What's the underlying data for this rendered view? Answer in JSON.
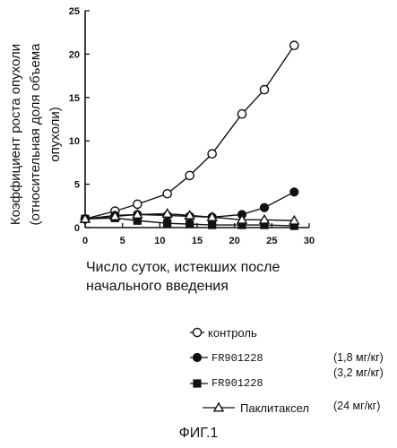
{
  "figure": {
    "caption": "ФИГ.1"
  },
  "chart_data": {
    "type": "line",
    "ylabel_lines": [
      "Коэффициент роста опухоли",
      "(относительная доля объема",
      "опухоли)"
    ],
    "xlabel_lines": [
      "Число суток, истекших после",
      "начального введения"
    ],
    "xlim": [
      0,
      30
    ],
    "ylim": [
      0,
      25
    ],
    "x_ticks": [
      0,
      5,
      10,
      15,
      20,
      25,
      30
    ],
    "y_ticks": [
      0,
      5,
      10,
      15,
      20,
      25
    ],
    "grid": false,
    "legend_position": "bottom-right",
    "series": [
      {
        "name": "контроль",
        "marker": "circle-open",
        "dose": "",
        "x": [
          0,
          4,
          7,
          11,
          14,
          17,
          21,
          24,
          28
        ],
        "y": [
          1.0,
          1.9,
          2.7,
          3.9,
          6.0,
          8.5,
          13.1,
          15.9,
          21.0
        ]
      },
      {
        "name": "FR901228",
        "marker": "circle-filled",
        "dose": "(1,8 мг/кг)",
        "x": [
          0,
          4,
          7,
          11,
          14,
          17,
          21,
          24,
          28
        ],
        "y": [
          1.0,
          1.4,
          1.5,
          1.4,
          1.3,
          1.2,
          1.5,
          2.3,
          4.1
        ]
      },
      {
        "name": "FR901228",
        "marker": "square-filled",
        "dose": "(3,2 мг/кг)",
        "x": [
          0,
          4,
          7,
          11,
          14,
          17,
          21,
          24,
          28
        ],
        "y": [
          1.0,
          1.1,
          0.8,
          0.5,
          0.4,
          0.3,
          0.3,
          0.3,
          0.2
        ]
      },
      {
        "name": "Паклитаксел",
        "marker": "triangle-open",
        "dose": "(24 мг/кг)",
        "x": [
          0,
          4,
          7,
          11,
          14,
          17,
          21,
          24,
          28
        ],
        "y": [
          1.0,
          1.3,
          1.5,
          1.6,
          1.4,
          1.2,
          0.9,
          0.9,
          0.8
        ]
      }
    ]
  }
}
